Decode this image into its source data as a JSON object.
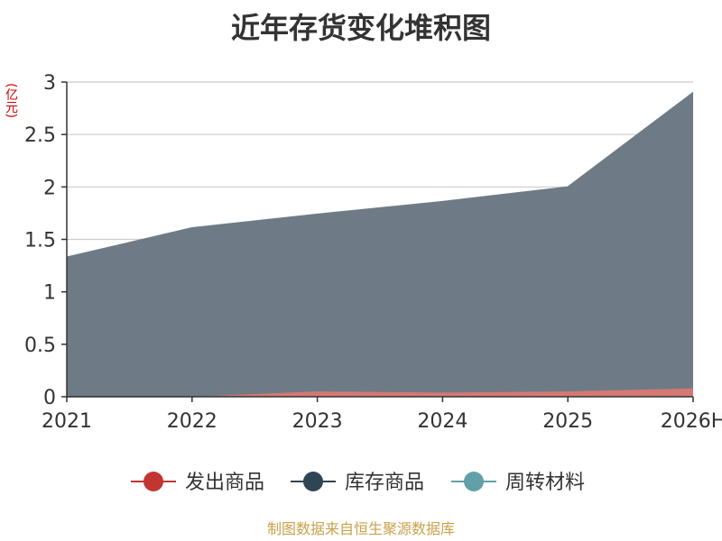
{
  "title": "近年存货变化堆积图",
  "unit": "(亿元)",
  "source": "制图数据来自恒生聚源数据库",
  "chart_data": {
    "type": "area",
    "stacked": true,
    "categories": [
      "2021",
      "2022",
      "2023",
      "2024",
      "2025",
      "2026H"
    ],
    "ylim": [
      0,
      3
    ],
    "yticks": [
      "0",
      "0.5",
      "1",
      "1.5",
      "2",
      "2.5",
      "3"
    ],
    "grid": true,
    "legend_position": "bottom",
    "series": [
      {
        "name": "发出商品",
        "color": "#c23531",
        "fill": "#d57873",
        "values": [
          0.0,
          0.0,
          0.05,
          0.04,
          0.05,
          0.08
        ]
      },
      {
        "name": "库存商品",
        "color": "#2f4554",
        "fill": "#6e7b86",
        "values": [
          1.33,
          1.61,
          1.69,
          1.82,
          1.95,
          2.82
        ]
      },
      {
        "name": "周转材料",
        "color": "#61a0a8",
        "fill": "#61a0a8",
        "values": [
          0,
          0,
          0,
          0,
          0,
          0
        ]
      }
    ]
  }
}
